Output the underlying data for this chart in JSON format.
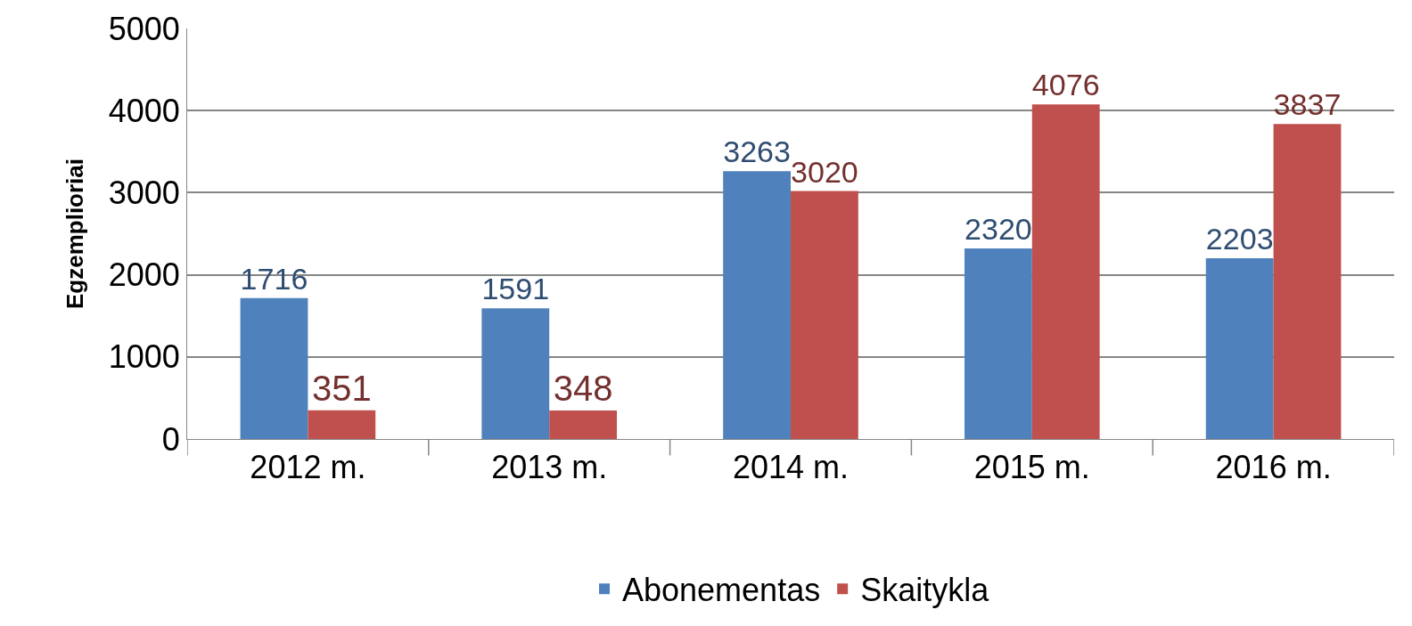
{
  "chart_data": {
    "type": "bar",
    "ylabel": "Egzemplioriai",
    "categories": [
      "2012 m.",
      "2013 m.",
      "2014 m.",
      "2015 m.",
      "2016 m."
    ],
    "series": [
      {
        "name": "Abonementas",
        "color": "#4f81bd",
        "values": [
          1716,
          1591,
          3263,
          2320,
          2203
        ]
      },
      {
        "name": "Skaitykla",
        "color": "#c0504d",
        "values": [
          351,
          348,
          3020,
          4076,
          3837
        ]
      }
    ],
    "ylim": [
      0,
      5000
    ],
    "yticks": [
      0,
      1000,
      2000,
      3000,
      4000,
      5000
    ],
    "grid": "y",
    "legend": "bottom",
    "data_labels": true
  }
}
